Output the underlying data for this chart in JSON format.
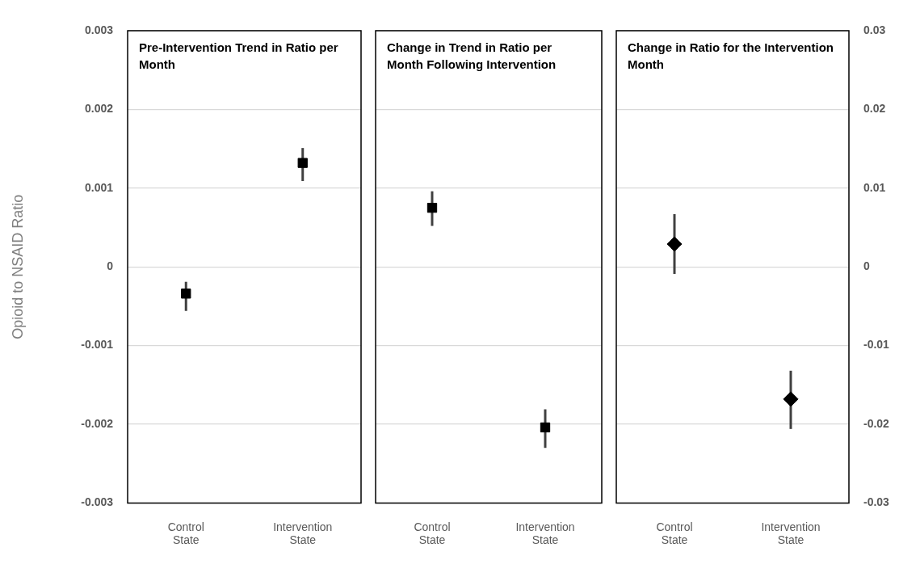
{
  "chart_data": [
    {
      "type": "scatter",
      "title": "Pre-Intervention Trend in Ratio per Month",
      "ylabel": "Opioid to NSAID Ratio",
      "categories": [
        "Control State",
        "Intervention State"
      ],
      "series": [
        {
          "color": "#000000",
          "values": [
            -0.00034,
            0.00132
          ],
          "errors": [
            [
              -0.00056,
              -0.00019
            ],
            [
              0.00109,
              0.00151
            ]
          ]
        }
      ],
      "ylim": [
        -0.003,
        0.003
      ],
      "yticks": [
        -0.003,
        -0.002,
        -0.001,
        0,
        0.001,
        0.002,
        0.003
      ],
      "grid": "y",
      "marker": "square"
    },
    {
      "type": "scatter",
      "title": "Change in Trend in Ratio per Month Following Intervention",
      "categories": [
        "Control State",
        "Intervention State"
      ],
      "series": [
        {
          "color": "#000000",
          "values": [
            0.00075,
            -0.00204
          ],
          "errors": [
            [
              0.00052,
              0.00096
            ],
            [
              -0.0023,
              -0.00181
            ]
          ]
        }
      ],
      "ylim": [
        -0.003,
        0.003
      ],
      "yticks": [
        -0.003,
        -0.002,
        -0.001,
        0,
        0.001,
        0.002,
        0.003
      ],
      "grid": "y",
      "marker": "square",
      "tick_labels": "x"
    },
    {
      "type": "scatter",
      "title": "Change in Ratio for the Intervention Month",
      "categories": [
        "Control State",
        "Intervention State"
      ],
      "series": [
        {
          "color": "#000000",
          "axis": "y2",
          "values": [
            0.0029,
            -0.0168
          ],
          "errors": [
            [
              -0.0009,
              0.0067
            ],
            [
              -0.0206,
              -0.0132
            ]
          ]
        }
      ],
      "y2lim": [
        -0.03,
        0.03
      ],
      "y2ticks": [
        -0.03,
        -0.02,
        -0.01,
        0,
        0.01,
        0.02,
        0.03
      ],
      "grid": "y",
      "marker": "diamond"
    }
  ]
}
